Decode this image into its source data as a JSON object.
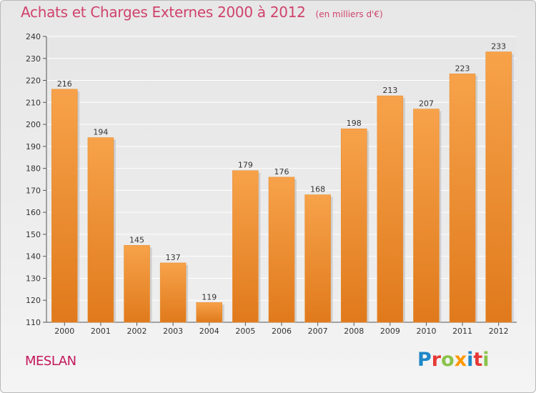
{
  "header": {
    "title": "Achats et Charges Externes 2000 à 2012",
    "subtitle": "(en milliers d'€)"
  },
  "footer": {
    "commune": "MESLAN",
    "logo_text": "Proxiti",
    "logo_colors": [
      "#1e88c8",
      "#e53935",
      "#8bc34a",
      "#ff9800",
      "#1e88c8",
      "#e53935",
      "#8bc34a"
    ]
  },
  "colors": {
    "bar_top": "#f7a24a",
    "bar_bottom": "#e07a1c",
    "title": "#d0426c",
    "grid": "#ffffff"
  },
  "chart_data": {
    "type": "bar",
    "title": "Achats et Charges Externes 2000 à 2012",
    "subtitle": "(en milliers d'€)",
    "categories": [
      "2000",
      "2001",
      "2002",
      "2003",
      "2004",
      "2005",
      "2006",
      "2007",
      "2008",
      "2009",
      "2010",
      "2011",
      "2012"
    ],
    "values": [
      216,
      194,
      145,
      137,
      119,
      179,
      176,
      168,
      198,
      213,
      207,
      223,
      233
    ],
    "ylim": [
      110,
      240
    ],
    "yticks": [
      110,
      120,
      130,
      140,
      150,
      160,
      170,
      180,
      190,
      200,
      210,
      220,
      230,
      240
    ],
    "xlabel": "",
    "ylabel": "",
    "grid": true,
    "data_labels": true
  }
}
